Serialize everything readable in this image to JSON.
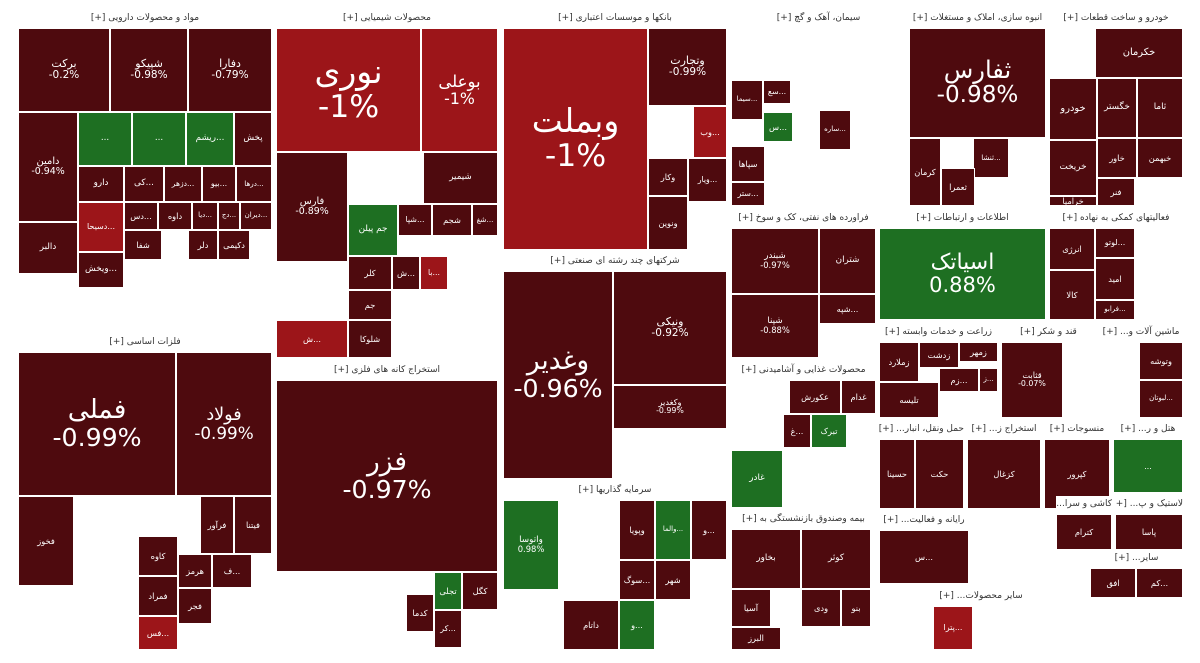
{
  "colors": {
    "dark": "#4e0a0e",
    "mid": "#6e0c13",
    "red": "#9c1519",
    "green": "#1e6f22",
    "border": "#ffffff"
  },
  "sectors": [
    {
      "id": "pharma",
      "title": "مواد و محصولات دارویی [+]",
      "tiles": [
        {
          "symbol": "برکت",
          "change": "-0.2%",
          "c": "dark"
        },
        {
          "symbol": "شپیکو",
          "change": "-0.98%",
          "c": "dark"
        },
        {
          "symbol": "دفارا",
          "change": "-0.79%",
          "c": "dark"
        },
        {
          "symbol": "دامین",
          "change": "-0.94%",
          "c": "dark"
        },
        {
          "symbol": "...",
          "change": "",
          "c": "green"
        },
        {
          "symbol": "...",
          "change": "",
          "c": "green"
        },
        {
          "symbol": "...ریشم",
          "change": "",
          "c": "green"
        },
        {
          "symbol": "پخش",
          "change": "",
          "c": "dark"
        },
        {
          "symbol": "دارو",
          "change": "",
          "c": "dark"
        },
        {
          "symbol": "...کی",
          "change": "",
          "c": "dark"
        },
        {
          "symbol": "...دزهر",
          "change": "",
          "c": "dark"
        },
        {
          "symbol": "...بیو",
          "change": "",
          "c": "dark"
        },
        {
          "symbol": "...درها",
          "change": "",
          "c": "dark"
        },
        {
          "symbol": "...دس",
          "change": "",
          "c": "dark"
        },
        {
          "symbol": "داوه",
          "change": "",
          "c": "dark"
        },
        {
          "symbol": "...دیا",
          "change": "",
          "c": "dark"
        },
        {
          "symbol": "...دج",
          "change": "",
          "c": "dark"
        },
        {
          "symbol": "...دیران",
          "change": "",
          "c": "dark"
        },
        {
          "symbol": "...دسیحا",
          "change": "",
          "c": "red"
        },
        {
          "symbol": "...ویخش",
          "change": "",
          "c": "dark"
        },
        {
          "symbol": "شفا",
          "change": "",
          "c": "dark"
        },
        {
          "symbol": "دلر",
          "change": "",
          "c": "dark"
        },
        {
          "symbol": "دکیمی",
          "change": "",
          "c": "dark"
        },
        {
          "symbol": "دالبر",
          "change": "",
          "c": "dark"
        }
      ]
    },
    {
      "id": "chemical",
      "title": "محصولات شیمیایی [+]",
      "tiles": [
        {
          "symbol": "نوری",
          "change": "-1%",
          "c": "red"
        },
        {
          "symbol": "بوعلی",
          "change": "-1%",
          "c": "red"
        },
        {
          "symbol": "فارس",
          "change": "-0.89%",
          "c": "dark"
        },
        {
          "symbol": "شیمیر",
          "change": "",
          "c": "dark"
        },
        {
          "symbol": "جم پیلن",
          "change": "",
          "c": "green"
        },
        {
          "symbol": "...شپا",
          "change": "",
          "c": "dark"
        },
        {
          "symbol": "شجم",
          "change": "",
          "c": "dark"
        },
        {
          "symbol": "...شغ",
          "change": "",
          "c": "dark"
        },
        {
          "symbol": "کلر",
          "change": "",
          "c": "dark"
        },
        {
          "symbol": "...ش",
          "change": "",
          "c": "dark"
        },
        {
          "symbol": "...با",
          "change": "",
          "c": "red"
        },
        {
          "symbol": "جم",
          "change": "",
          "c": "dark"
        },
        {
          "symbol": "شلوکا",
          "change": "",
          "c": "dark"
        },
        {
          "symbol": "...ش",
          "change": "",
          "c": "red"
        }
      ]
    },
    {
      "id": "banks",
      "title": "بانکها و موسسات اعتباری [+]",
      "tiles": [
        {
          "symbol": "وبملت",
          "change": "-1%",
          "c": "red"
        },
        {
          "symbol": "وتجارت",
          "change": "-0.99%",
          "c": "dark"
        },
        {
          "symbol": "...وب",
          "change": "",
          "c": "red"
        },
        {
          "symbol": "وکار",
          "change": "",
          "c": "dark"
        },
        {
          "symbol": "...ویار",
          "change": "",
          "c": "dark"
        },
        {
          "symbol": "ونوین",
          "change": "",
          "c": "dark"
        }
      ]
    },
    {
      "id": "cement",
      "title": "سیمان، آهک و گچ [+]",
      "tiles": [
        {
          "symbol": "...سیما",
          "change": "",
          "c": "dark"
        },
        {
          "symbol": "...سع",
          "change": "",
          "c": "dark"
        },
        {
          "symbol": "...س",
          "change": "",
          "c": "green"
        },
        {
          "symbol": "...ساره",
          "change": "",
          "c": "dark"
        },
        {
          "symbol": "سپاها",
          "change": "",
          "c": "dark"
        },
        {
          "symbol": "...ستر",
          "change": "",
          "c": "dark"
        }
      ]
    },
    {
      "id": "realestate",
      "title": "انبوه سازی، املاک و مستغلات [+]",
      "tiles": [
        {
          "symbol": "ثفارس",
          "change": "-0.98%",
          "c": "dark"
        },
        {
          "symbol": "...ثنشا",
          "change": "",
          "c": "dark"
        },
        {
          "symbol": "کرمان",
          "change": "",
          "c": "dark"
        },
        {
          "symbol": "ثعمرا",
          "change": "",
          "c": "dark"
        }
      ]
    },
    {
      "id": "auto",
      "title": "خودرو و ساخت قطعات [+]",
      "tiles": [
        {
          "symbol": "خکرمان",
          "change": "",
          "c": "dark"
        },
        {
          "symbol": "خودرو",
          "change": "",
          "c": "dark"
        },
        {
          "symbol": "خگستر",
          "change": "",
          "c": "dark"
        },
        {
          "symbol": "ثاما",
          "change": "",
          "c": "dark"
        },
        {
          "symbol": "خاور",
          "change": "",
          "c": "dark"
        },
        {
          "symbol": "خبهمن",
          "change": "",
          "c": "dark"
        },
        {
          "symbol": "خریخت",
          "change": "",
          "c": "dark"
        },
        {
          "symbol": "فنر",
          "change": "",
          "c": "dark"
        },
        {
          "symbol": "خرامیا",
          "change": "",
          "c": "dark"
        }
      ]
    },
    {
      "id": "petroleum",
      "title": "فراورده های نفتی، کک و سوخ [+]",
      "tiles": [
        {
          "symbol": "شبندر",
          "change": "-0.97%",
          "c": "dark"
        },
        {
          "symbol": "شتران",
          "change": "",
          "c": "dark"
        },
        {
          "symbol": "...شپه",
          "change": "",
          "c": "dark"
        },
        {
          "symbol": "شپنا",
          "change": "-0.88%",
          "c": "dark"
        }
      ]
    },
    {
      "id": "telecom",
      "title": "اطلاعات و ارتباطات [+]",
      "tiles": [
        {
          "symbol": "اسیاتک",
          "change": "0.88%",
          "c": "green"
        }
      ]
    },
    {
      "id": "support",
      "title": "فعالیتهای کمکی به نهاده [+]",
      "tiles": [
        {
          "symbol": "...لوتو",
          "change": "",
          "c": "dark"
        },
        {
          "symbol": "انرژی",
          "change": "",
          "c": "dark"
        },
        {
          "symbol": "امید",
          "change": "",
          "c": "dark"
        },
        {
          "symbol": "کالا",
          "change": "",
          "c": "dark"
        },
        {
          "symbol": "...فرابو",
          "change": "",
          "c": "dark"
        }
      ]
    },
    {
      "id": "metals",
      "title": "فلزات اساسی [+]",
      "tiles": [
        {
          "symbol": "فملی",
          "change": "-0.99%",
          "c": "dark"
        },
        {
          "symbol": "فولاد",
          "change": "-0.99%",
          "c": "dark"
        },
        {
          "symbol": "فخوز",
          "change": "",
          "c": "dark"
        },
        {
          "symbol": "فیتنا",
          "change": "",
          "c": "dark"
        },
        {
          "symbol": "فرآور",
          "change": "",
          "c": "dark"
        },
        {
          "symbol": "کاوه",
          "change": "",
          "c": "dark"
        },
        {
          "symbol": "هرمز",
          "change": "",
          "c": "dark"
        },
        {
          "symbol": "...ف",
          "change": "",
          "c": "dark"
        },
        {
          "symbol": "فمراد",
          "change": "",
          "c": "dark"
        },
        {
          "symbol": "فجر",
          "change": "",
          "c": "dark"
        },
        {
          "symbol": "...فس",
          "change": "",
          "c": "red"
        }
      ]
    },
    {
      "id": "mining",
      "title": "استخراج کانه های فلزی [+]",
      "tiles": [
        {
          "symbol": "فزر",
          "change": "-0.97%",
          "c": "dark"
        },
        {
          "symbol": "کگل",
          "change": "",
          "c": "dark"
        },
        {
          "symbol": "تجلی",
          "change": "",
          "c": "green"
        },
        {
          "symbol": "کدما",
          "change": "",
          "c": "dark"
        },
        {
          "symbol": "...کر",
          "change": "",
          "c": "dark"
        }
      ]
    },
    {
      "id": "conglomerate",
      "title": "شرکتهای چند رشته ای صنعتی [+]",
      "tiles": [
        {
          "symbol": "وغدیر",
          "change": "-0.96%",
          "c": "dark"
        },
        {
          "symbol": "ونیکی",
          "change": "-0.92%",
          "c": "dark"
        },
        {
          "symbol": "وکغدیر",
          "change": "-0.99%",
          "c": "dark"
        }
      ]
    },
    {
      "id": "investment",
      "title": "سرمایه گذاریها [+]",
      "tiles": [
        {
          "symbol": "واتوسا",
          "change": "0.98%",
          "c": "green"
        },
        {
          "symbol": "...والما",
          "change": "",
          "c": "green"
        },
        {
          "symbol": "وپویا",
          "change": "",
          "c": "dark"
        },
        {
          "symbol": "...و",
          "change": "",
          "c": "dark"
        },
        {
          "symbol": "...سوگ",
          "change": "",
          "c": "dark"
        },
        {
          "symbol": "شهر",
          "change": "",
          "c": "dark"
        },
        {
          "symbol": "داتام",
          "change": "",
          "c": "dark"
        },
        {
          "symbol": "...و",
          "change": "",
          "c": "green"
        }
      ]
    },
    {
      "id": "food",
      "title": "محصولات غذایی و آشامیدنی [+]",
      "tiles": [
        {
          "symbol": "عکورش",
          "change": "",
          "c": "dark"
        },
        {
          "symbol": "غدام",
          "change": "",
          "c": "dark"
        },
        {
          "symbol": "تبرک",
          "change": "",
          "c": "green"
        },
        {
          "symbol": "غادر",
          "change": "",
          "c": "green"
        },
        {
          "symbol": "...غ",
          "change": "",
          "c": "dark"
        }
      ]
    },
    {
      "id": "agri",
      "title": "زراعت و خدمات وابسته [+]",
      "tiles": [
        {
          "symbol": "زمهر",
          "change": "",
          "c": "dark"
        },
        {
          "symbol": "زدشت",
          "change": "",
          "c": "dark"
        },
        {
          "symbol": "زملارد",
          "change": "",
          "c": "dark"
        },
        {
          "symbol": "...زم",
          "change": "",
          "c": "dark"
        },
        {
          "symbol": "تلیسه",
          "change": "",
          "c": "dark"
        },
        {
          "symbol": "...ز",
          "change": "",
          "c": "dark"
        }
      ]
    },
    {
      "id": "sugar",
      "title": "قند و شکر [+]",
      "tiles": [
        {
          "symbol": "قثابت",
          "change": "-0.07%",
          "c": "dark"
        }
      ]
    },
    {
      "id": "machinery",
      "title": "ماشین آلات و... [+]",
      "tiles": [
        {
          "symbol": "وتوشه",
          "change": "",
          "c": "dark"
        },
        {
          "symbol": "...لبوتان",
          "change": "",
          "c": "dark"
        }
      ]
    },
    {
      "id": "pension",
      "title": "بیمه وصندوق بازنشستگی به [+]",
      "tiles": [
        {
          "symbol": "بخاور",
          "change": "",
          "c": "dark"
        },
        {
          "symbol": "کوثر",
          "change": "",
          "c": "dark"
        },
        {
          "symbol": "ودی",
          "change": "",
          "c": "dark"
        },
        {
          "symbol": "آسیا",
          "change": "",
          "c": "dark"
        },
        {
          "symbol": "بنو",
          "change": "",
          "c": "dark"
        },
        {
          "symbol": "البرز",
          "change": "",
          "c": "dark"
        }
      ]
    },
    {
      "id": "transport",
      "title": "حمل ونقل، انبار... [+]",
      "tiles": [
        {
          "symbol": "حسینا",
          "change": "",
          "c": "dark"
        },
        {
          "symbol": "حکت",
          "change": "",
          "c": "dark"
        }
      ]
    },
    {
      "id": "other-mining",
      "title": "استخراج ز... [+]",
      "tiles": [
        {
          "symbol": "کزغال",
          "change": "",
          "c": "dark"
        }
      ]
    },
    {
      "id": "textile",
      "title": "منسوجات [+]",
      "tiles": [
        {
          "symbol": "کپرور",
          "change": "",
          "c": "dark"
        }
      ]
    },
    {
      "id": "hotel",
      "title": "هتل و ر... [+]",
      "tiles": [
        {
          "symbol": "...",
          "change": "",
          "c": "green"
        }
      ]
    },
    {
      "id": "computer",
      "title": "رایانه و فعالیت... [+]",
      "tiles": [
        {
          "symbol": "...س",
          "change": "",
          "c": "dark"
        }
      ]
    },
    {
      "id": "tile",
      "title": "کاشی و سرا... [+]",
      "tiles": [
        {
          "symbol": "کترام",
          "change": "",
          "c": "dark"
        }
      ]
    },
    {
      "id": "plastic",
      "title": "لاستیک و پ... [+]",
      "tiles": [
        {
          "symbol": "پاسا",
          "change": "",
          "c": "dark"
        }
      ]
    },
    {
      "id": "other-products",
      "title": "سایر محصولات... [+]",
      "tiles": [
        {
          "symbol": "...پترا",
          "change": "",
          "c": "red"
        }
      ]
    },
    {
      "id": "misc1",
      "title": "سایر... [+]",
      "tiles": [
        {
          "symbol": "افق",
          "change": "",
          "c": "dark"
        },
        {
          "symbol": "...کم",
          "change": "",
          "c": "dark"
        }
      ]
    }
  ]
}
